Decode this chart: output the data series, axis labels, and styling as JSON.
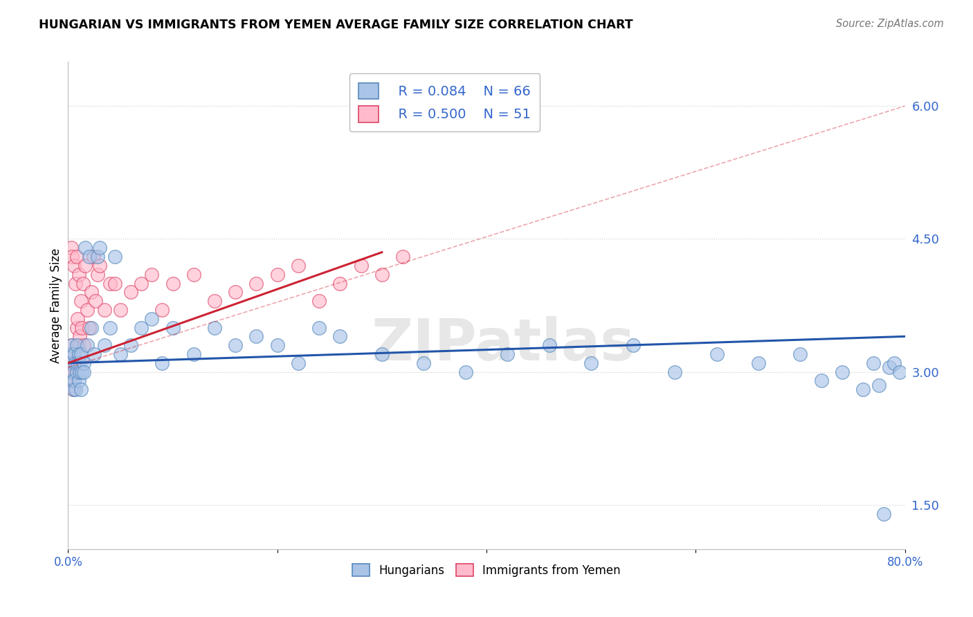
{
  "title": "HUNGARIAN VS IMMIGRANTS FROM YEMEN AVERAGE FAMILY SIZE CORRELATION CHART",
  "source": "Source: ZipAtlas.com",
  "ylabel": "Average Family Size",
  "x_min": 0.0,
  "x_max": 0.8,
  "y_min": 1.0,
  "y_max": 6.5,
  "y_ticks": [
    1.5,
    3.0,
    4.5,
    6.0
  ],
  "x_ticks": [
    0.0,
    0.2,
    0.4,
    0.6,
    0.8
  ],
  "x_tick_labels": [
    "0.0%",
    "",
    "",
    "",
    "80.0%"
  ],
  "grid_color": "#cccccc",
  "bg_color": "#ffffff",
  "blue_fill": "#aac4e8",
  "blue_edge": "#5588bb",
  "pink_fill": "#ffbbcc",
  "pink_edge": "#dd4466",
  "trend_blue": "#2255aa",
  "trend_pink": "#cc2233",
  "legend_color": "#3366cc",
  "r_blue": "R = 0.084",
  "n_blue": "N = 66",
  "r_pink": "R = 0.500",
  "n_pink": "N = 51",
  "hun_x": [
    0.002,
    0.003,
    0.004,
    0.004,
    0.005,
    0.005,
    0.006,
    0.006,
    0.007,
    0.007,
    0.008,
    0.008,
    0.009,
    0.01,
    0.01,
    0.011,
    0.011,
    0.012,
    0.012,
    0.013,
    0.015,
    0.015,
    0.016,
    0.018,
    0.02,
    0.022,
    0.025,
    0.028,
    0.03,
    0.035,
    0.04,
    0.045,
    0.05,
    0.06,
    0.07,
    0.08,
    0.09,
    0.1,
    0.12,
    0.14,
    0.16,
    0.18,
    0.2,
    0.22,
    0.24,
    0.26,
    0.3,
    0.34,
    0.38,
    0.42,
    0.46,
    0.5,
    0.54,
    0.58,
    0.62,
    0.66,
    0.7,
    0.72,
    0.74,
    0.76,
    0.77,
    0.775,
    0.78,
    0.785,
    0.79,
    0.795
  ],
  "hun_y": [
    3.2,
    3.1,
    2.9,
    3.3,
    3.0,
    2.8,
    3.2,
    2.9,
    3.1,
    2.8,
    3.3,
    3.0,
    3.1,
    3.2,
    2.9,
    3.1,
    3.0,
    3.2,
    2.8,
    3.0,
    3.1,
    3.0,
    4.4,
    3.3,
    4.3,
    3.5,
    3.2,
    4.3,
    4.4,
    3.3,
    3.5,
    4.3,
    3.2,
    3.3,
    3.5,
    3.6,
    3.1,
    3.5,
    3.2,
    3.5,
    3.3,
    3.4,
    3.3,
    3.1,
    3.5,
    3.4,
    3.2,
    3.1,
    3.0,
    3.2,
    3.3,
    3.1,
    3.3,
    3.0,
    3.2,
    3.1,
    3.2,
    2.9,
    3.0,
    2.8,
    3.1,
    2.85,
    1.4,
    3.05,
    3.1,
    3.0
  ],
  "yem_x": [
    0.001,
    0.002,
    0.002,
    0.003,
    0.003,
    0.004,
    0.004,
    0.005,
    0.005,
    0.006,
    0.006,
    0.007,
    0.007,
    0.008,
    0.008,
    0.009,
    0.01,
    0.01,
    0.011,
    0.012,
    0.013,
    0.014,
    0.015,
    0.016,
    0.018,
    0.02,
    0.022,
    0.024,
    0.026,
    0.028,
    0.03,
    0.035,
    0.04,
    0.045,
    0.05,
    0.06,
    0.07,
    0.08,
    0.09,
    0.1,
    0.12,
    0.14,
    0.16,
    0.18,
    0.2,
    0.22,
    0.24,
    0.26,
    0.28,
    0.3,
    0.32
  ],
  "yem_y": [
    3.0,
    2.9,
    3.1,
    4.4,
    3.3,
    3.0,
    4.3,
    2.8,
    3.2,
    4.2,
    3.1,
    4.0,
    3.0,
    3.5,
    4.3,
    3.6,
    3.3,
    4.1,
    3.4,
    3.8,
    3.5,
    4.0,
    3.3,
    4.2,
    3.7,
    3.5,
    3.9,
    4.3,
    3.8,
    4.1,
    4.2,
    3.7,
    4.0,
    4.0,
    3.7,
    3.9,
    4.0,
    4.1,
    3.7,
    4.0,
    4.1,
    3.8,
    3.9,
    4.0,
    4.1,
    4.2,
    3.8,
    4.0,
    4.2,
    4.1,
    4.3
  ],
  "blue_trendx": [
    0.0,
    0.8
  ],
  "blue_trendy": [
    3.1,
    3.4
  ],
  "pink_trendx": [
    0.0,
    0.3
  ],
  "pink_trendy": [
    3.1,
    4.35
  ],
  "pink_dashx": [
    0.0,
    0.8
  ],
  "pink_dashy": [
    3.05,
    6.0
  ]
}
